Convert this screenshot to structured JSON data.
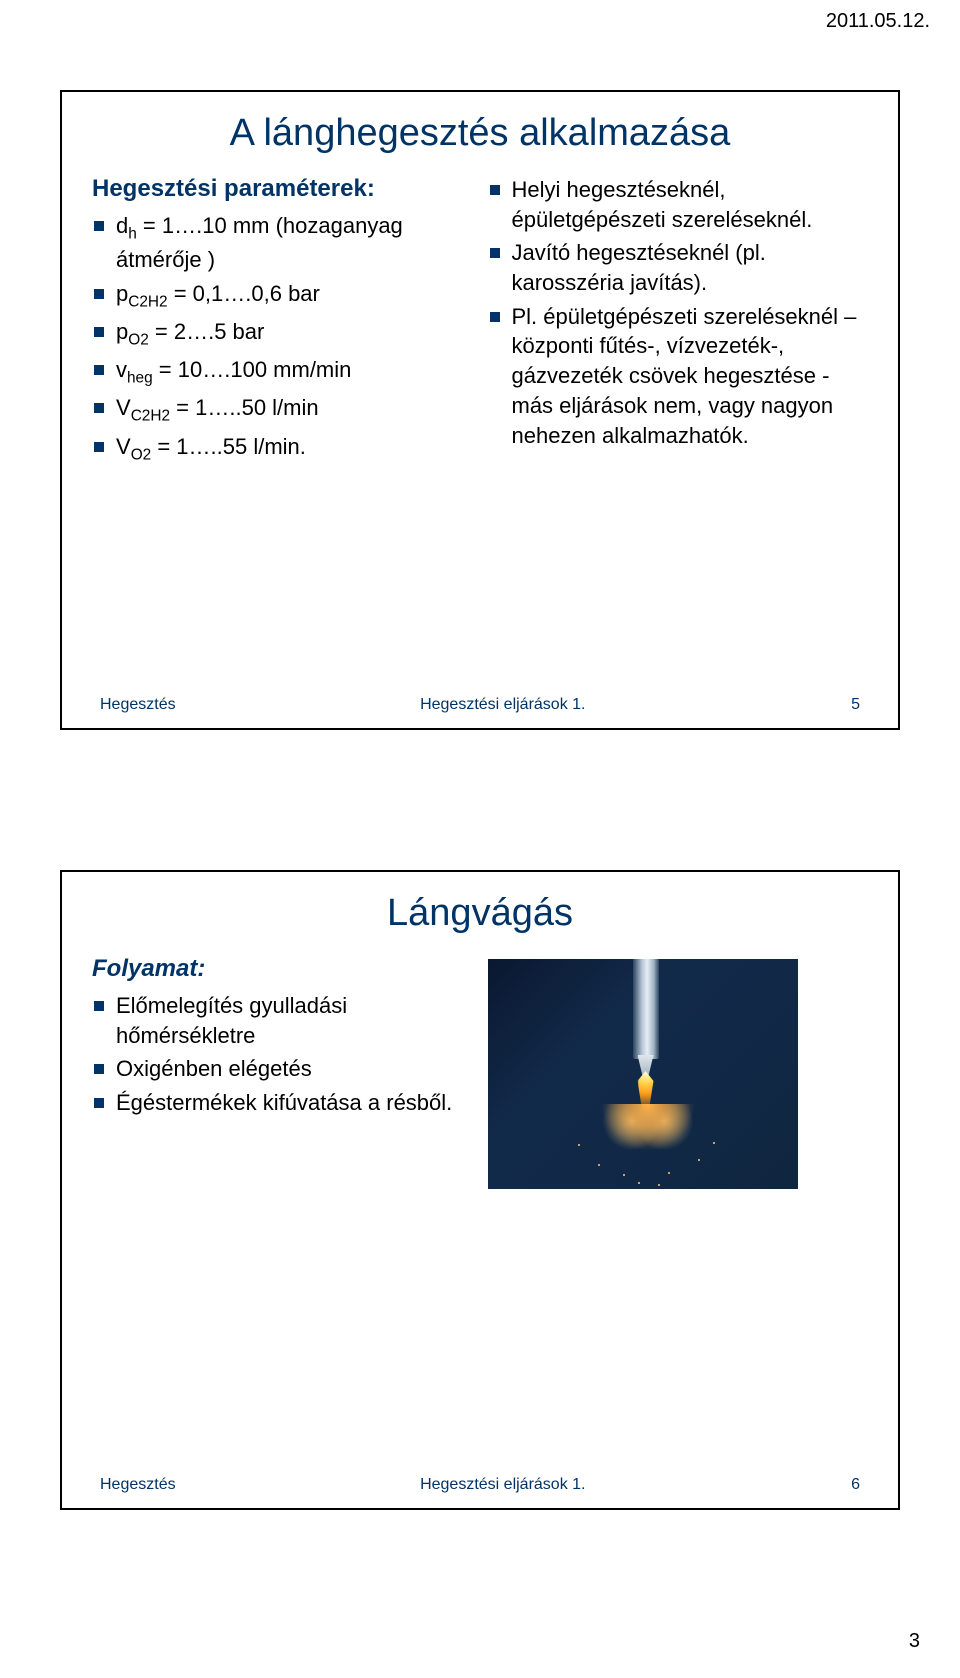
{
  "header": {
    "date": "2011.05.12."
  },
  "pageNumber": "3",
  "slide1": {
    "title": "A lánghegesztés alkalmazása",
    "left": {
      "heading": "Hegesztési paraméterek:",
      "items": [
        "d<sub>h</sub> = 1….10 mm (hozaganyag átmérője )",
        "p<sub>C2H2</sub> = 0,1….0,6 bar",
        "p<sub>O2</sub> = 2….5 bar",
        "v<sub>heg</sub> = 10….100 mm/min",
        "V<sub>C2H2</sub> = 1…..50 l/min",
        "V<sub>O2</sub> = 1…..55 l/min."
      ]
    },
    "right": {
      "items": [
        "Helyi hegesztéseknél, épületgépészeti szereléseknél.",
        "Javító hegesztéseknél (pl. karosszéria javítás).",
        "Pl. épületgépészeti szereléseknél – központi fűtés-, vízvezeték-, gázvezeték csövek hegesztése - más eljárások nem, vagy nagyon nehezen alkalmazhatók."
      ]
    },
    "footer": {
      "left": "Hegesztés",
      "center": "Hegesztési eljárások 1.",
      "num": "5"
    }
  },
  "slide2": {
    "title": "Lángvágás",
    "left": {
      "heading": "Folyamat:",
      "items": [
        "Előmelegítés gyulladási hőmérsékletre",
        "Oxigénben elégetés",
        "Égéstermékek kifúvatása a résből."
      ]
    },
    "image_alt": "flame-cutting-photo",
    "footer": {
      "left": "Hegesztés",
      "center": "Hegesztési eljárások 1.",
      "num": "6"
    }
  },
  "colors": {
    "heading": "#003366",
    "bullet": "#003366",
    "border": "#000000",
    "bg": "#ffffff"
  }
}
